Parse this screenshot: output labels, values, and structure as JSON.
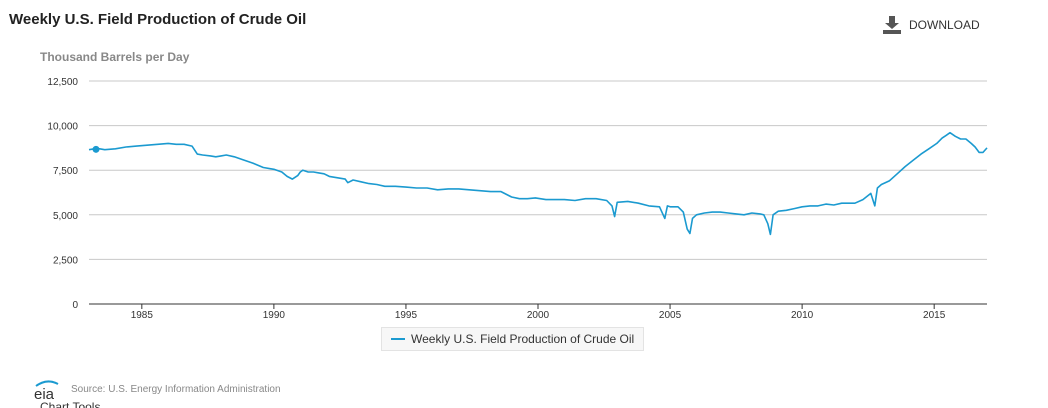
{
  "header": {
    "title": "Weekly U.S. Field Production of Crude Oil",
    "download_label": "DOWNLOAD",
    "download_icon": "download-icon"
  },
  "colors": {
    "series": "#1b9ad0",
    "grid": "#c8c8c8",
    "axis": "#333333"
  },
  "source": {
    "logo_text": "eia",
    "text": "Source: U.S. Energy Information Administration"
  },
  "footer": {
    "chart_tools_label": "Chart Tools"
  },
  "chart_data": {
    "type": "line",
    "title": "Weekly U.S. Field Production of Crude Oil",
    "xlabel": "",
    "ylabel": "Thousand Barrels per Day",
    "ylim": [
      0,
      12500
    ],
    "yticks": [
      0,
      2500,
      5000,
      7500,
      10000,
      12500
    ],
    "ytick_labels": [
      "0",
      "2,500",
      "5,000",
      "7,500",
      "10,000",
      "12,500"
    ],
    "xlim": [
      1983.0,
      2017.0
    ],
    "xticks": [
      1985,
      1990,
      1995,
      2000,
      2005,
      2010,
      2015
    ],
    "xtick_labels": [
      "1985",
      "1990",
      "1995",
      "2000",
      "2005",
      "2010",
      "2015"
    ],
    "grid": true,
    "legend_position": "bottom-center",
    "series": [
      {
        "name": "Weekly U.S. Field Production of Crude Oil",
        "marker_at_start": true,
        "x": [
          1983.0,
          1983.2,
          1983.4,
          1983.6,
          1984.0,
          1984.4,
          1984.8,
          1985.2,
          1985.6,
          1986.0,
          1986.3,
          1986.6,
          1986.9,
          1987.1,
          1987.3,
          1987.6,
          1987.8,
          1988.0,
          1988.2,
          1988.5,
          1988.8,
          1989.2,
          1989.6,
          1990.0,
          1990.3,
          1990.5,
          1990.7,
          1990.9,
          1991.0,
          1991.1,
          1991.3,
          1991.5,
          1991.7,
          1991.9,
          1992.1,
          1992.3,
          1992.5,
          1992.7,
          1992.8,
          1993.0,
          1993.3,
          1993.6,
          1993.9,
          1994.2,
          1994.6,
          1995.0,
          1995.4,
          1995.8,
          1996.2,
          1996.6,
          1997.0,
          1997.4,
          1997.8,
          1998.2,
          1998.6,
          1999.0,
          1999.3,
          1999.6,
          1999.9,
          2000.3,
          2000.7,
          2001.0,
          2001.4,
          2001.8,
          2002.2,
          2002.6,
          2002.8,
          2002.9,
          2003.0,
          2003.4,
          2003.8,
          2004.2,
          2004.6,
          2004.8,
          2004.9,
          2005.0,
          2005.3,
          2005.5,
          2005.65,
          2005.75,
          2005.85,
          2006.0,
          2006.3,
          2006.6,
          2006.9,
          2007.2,
          2007.5,
          2007.8,
          2008.1,
          2008.4,
          2008.55,
          2008.7,
          2008.8,
          2008.9,
          2009.1,
          2009.4,
          2009.7,
          2010.0,
          2010.3,
          2010.6,
          2010.9,
          2011.2,
          2011.5,
          2011.8,
          2012.0,
          2012.3,
          2012.6,
          2012.75,
          2012.85,
          2013.0,
          2013.3,
          2013.6,
          2013.9,
          2014.2,
          2014.5,
          2014.8,
          2015.1,
          2015.3,
          2015.45,
          2015.6,
          2015.8,
          2016.0,
          2016.2,
          2016.4,
          2016.55,
          2016.7,
          2016.85,
          2017.0
        ],
        "values": [
          8650,
          8700,
          8700,
          8650,
          8700,
          8800,
          8850,
          8900,
          8950,
          9000,
          8950,
          8950,
          8850,
          8400,
          8350,
          8300,
          8250,
          8300,
          8350,
          8250,
          8100,
          7900,
          7650,
          7550,
          7400,
          7150,
          7000,
          7200,
          7400,
          7500,
          7400,
          7400,
          7350,
          7300,
          7150,
          7100,
          7050,
          7000,
          6800,
          6950,
          6850,
          6750,
          6700,
          6600,
          6600,
          6550,
          6500,
          6500,
          6400,
          6450,
          6450,
          6400,
          6350,
          6300,
          6300,
          6000,
          5900,
          5900,
          5950,
          5850,
          5850,
          5850,
          5800,
          5900,
          5900,
          5800,
          5500,
          4900,
          5700,
          5750,
          5650,
          5500,
          5450,
          4800,
          5500,
          5450,
          5450,
          5150,
          4200,
          3950,
          4800,
          5000,
          5100,
          5150,
          5150,
          5100,
          5050,
          5000,
          5100,
          5050,
          5000,
          4500,
          3900,
          5000,
          5200,
          5250,
          5350,
          5450,
          5500,
          5500,
          5600,
          5550,
          5650,
          5650,
          5650,
          5850,
          6200,
          5500,
          6500,
          6700,
          6900,
          7300,
          7700,
          8050,
          8400,
          8700,
          9000,
          9300,
          9450,
          9600,
          9400,
          9250,
          9250,
          9000,
          8800,
          8500,
          8500,
          8750
        ]
      }
    ]
  }
}
